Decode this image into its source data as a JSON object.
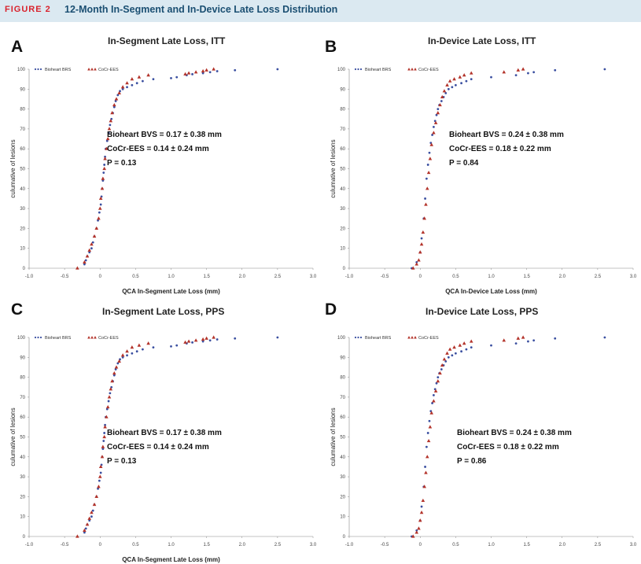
{
  "figure": {
    "label": "FIGURE 2",
    "title": "12-Month In-Segment and In-Device Late Loss Distribution"
  },
  "colors": {
    "bioheart": "#3a4fa0",
    "cocr": "#b3332a"
  },
  "legend": {
    "series1": "Bioheart BRS",
    "series2": "CoCr-EES"
  },
  "chart_data": [
    {
      "panel": "A",
      "type": "scatter",
      "title": "In-Segment Late Loss, ITT",
      "xlabel": "QCA In-Segment Late Loss (mm)",
      "ylabel": "culumative of lesions",
      "xlim": [
        -1.0,
        3.0
      ],
      "ylim": [
        0,
        100
      ],
      "xticks": [
        "-1.0",
        "-0.5",
        "0",
        "0.5",
        "1.0",
        "1.5",
        "2.0",
        "2.5",
        "3.0"
      ],
      "yticks": [
        "0",
        "10",
        "20",
        "30",
        "40",
        "50",
        "60",
        "70",
        "80",
        "90",
        "100"
      ],
      "stats": [
        "Bioheart BVS = 0.17 ± 0.38 mm",
        "CoCr-EES = 0.14 ± 0.24 mm",
        "P = 0.13"
      ],
      "series": [
        {
          "name": "Bioheart BRS",
          "marker": "dot",
          "x": [
            -0.22,
            -0.2,
            -0.18,
            -0.15,
            -0.12,
            -0.1,
            -0.08,
            -0.05,
            -0.03,
            -0.01,
            0.01,
            0.02,
            0.03,
            0.04,
            0.05,
            0.06,
            0.07,
            0.08,
            0.1,
            0.12,
            0.14,
            0.16,
            0.18,
            0.2,
            0.22,
            0.25,
            0.28,
            0.32,
            0.38,
            0.45,
            0.52,
            0.6,
            0.75,
            1.0,
            1.08,
            1.22,
            1.3,
            1.45,
            1.55,
            1.65,
            1.9,
            2.5
          ],
          "y": [
            2,
            4,
            6,
            8,
            10,
            13,
            16,
            20,
            24,
            28,
            32,
            36,
            40,
            44,
            48,
            52,
            56,
            60,
            64,
            68,
            72,
            75,
            78,
            81,
            84,
            87,
            89,
            90,
            91,
            92,
            93,
            94,
            95,
            95.5,
            96,
            97,
            97.5,
            98,
            98.5,
            99,
            99.5,
            100
          ]
        },
        {
          "name": "CoCr-EES",
          "marker": "triangle",
          "x": [
            -0.32,
            -0.22,
            -0.18,
            -0.15,
            -0.12,
            -0.08,
            -0.05,
            -0.02,
            0.0,
            0.01,
            0.03,
            0.04,
            0.06,
            0.07,
            0.09,
            0.11,
            0.13,
            0.15,
            0.17,
            0.2,
            0.23,
            0.27,
            0.32,
            0.38,
            0.45,
            0.55,
            0.68,
            1.2,
            1.25,
            1.35,
            1.45,
            1.5,
            1.6
          ],
          "y": [
            0,
            3,
            6,
            9,
            12,
            16,
            20,
            25,
            30,
            35,
            40,
            45,
            50,
            55,
            60,
            65,
            70,
            74,
            78,
            82,
            85,
            88,
            91,
            93,
            95,
            96,
            97,
            97.5,
            98,
            98.5,
            99,
            99.5,
            100
          ]
        }
      ]
    },
    {
      "panel": "B",
      "type": "scatter",
      "title": "In-Device Late Loss, ITT",
      "xlabel": "QCA In-Device Late Loss (mm)",
      "ylabel": "culumative of lesions",
      "xlim": [
        -1.0,
        3.0
      ],
      "ylim": [
        0,
        100
      ],
      "xticks": [
        "-1.0",
        "-0.5",
        "0",
        "0.5",
        "1.0",
        "1.5",
        "2.0",
        "2.5",
        "3.0"
      ],
      "yticks": [
        "0",
        "10",
        "20",
        "30",
        "40",
        "50",
        "60",
        "70",
        "80",
        "90",
        "100"
      ],
      "stats": [
        "Bioheart BVS = 0.24 ± 0.38 mm",
        "CoCr-EES = 0.18 ± 0.22 mm",
        "P = 0.84"
      ],
      "series": [
        {
          "name": "Bioheart BRS",
          "marker": "dot",
          "x": [
            -0.12,
            -0.05,
            0.0,
            0.02,
            0.05,
            0.07,
            0.09,
            0.11,
            0.13,
            0.15,
            0.17,
            0.19,
            0.21,
            0.23,
            0.25,
            0.27,
            0.3,
            0.33,
            0.36,
            0.4,
            0.45,
            0.5,
            0.58,
            0.65,
            0.72,
            1.0,
            1.35,
            1.52,
            1.6,
            1.9,
            2.6
          ],
          "y": [
            0,
            3,
            8,
            15,
            25,
            35,
            45,
            52,
            58,
            63,
            67,
            71,
            74,
            77,
            80,
            82,
            84,
            86,
            88,
            90,
            91,
            92,
            93,
            94,
            95,
            96,
            97,
            98,
            98.5,
            99.5,
            100
          ]
        },
        {
          "name": "CoCr-EES",
          "marker": "triangle",
          "x": [
            -0.1,
            -0.05,
            -0.02,
            0.0,
            0.02,
            0.04,
            0.06,
            0.08,
            0.1,
            0.12,
            0.14,
            0.16,
            0.19,
            0.22,
            0.25,
            0.28,
            0.31,
            0.34,
            0.38,
            0.42,
            0.48,
            0.56,
            0.62,
            0.72,
            1.18,
            1.38,
            1.45
          ],
          "y": [
            0,
            2,
            4,
            8,
            12,
            18,
            25,
            32,
            40,
            48,
            55,
            62,
            68,
            73,
            78,
            82,
            86,
            89,
            92,
            94,
            95,
            96,
            97,
            98,
            98.5,
            99.5,
            100
          ]
        }
      ]
    },
    {
      "panel": "C",
      "type": "scatter",
      "title": "In-Segment Late Loss, PPS",
      "xlabel": "QCA In-Segment Late Loss (mm)",
      "ylabel": "culumative of lesions",
      "xlim": [
        -1.0,
        3.0
      ],
      "ylim": [
        0,
        100
      ],
      "xticks": [
        "-1.0",
        "-0.5",
        "0",
        "0.5",
        "1.0",
        "1.5",
        "2.0",
        "2.5",
        "3.0"
      ],
      "yticks": [
        "0",
        "10",
        "20",
        "30",
        "40",
        "50",
        "60",
        "70",
        "80",
        "90",
        "100"
      ],
      "stats": [
        "Bioheart BVS = 0.17 ± 0.38 mm",
        "CoCr-EES = 0.14 ± 0.24 mm",
        "P = 0.13"
      ],
      "series": [
        {
          "name": "Bioheart BRS",
          "marker": "dot",
          "x": [
            -0.22,
            -0.2,
            -0.18,
            -0.15,
            -0.12,
            -0.1,
            -0.08,
            -0.05,
            -0.03,
            -0.01,
            0.01,
            0.02,
            0.03,
            0.04,
            0.05,
            0.06,
            0.07,
            0.08,
            0.1,
            0.12,
            0.14,
            0.16,
            0.18,
            0.2,
            0.22,
            0.25,
            0.28,
            0.32,
            0.38,
            0.45,
            0.52,
            0.6,
            0.75,
            1.0,
            1.08,
            1.22,
            1.3,
            1.45,
            1.55,
            1.65,
            1.9,
            2.5
          ],
          "y": [
            2,
            4,
            6,
            8,
            10,
            13,
            16,
            20,
            24,
            28,
            32,
            36,
            40,
            44,
            48,
            52,
            56,
            60,
            64,
            68,
            72,
            75,
            78,
            81,
            84,
            87,
            89,
            90,
            91,
            92,
            93,
            94,
            95,
            95.5,
            96,
            97,
            97.5,
            98,
            98.5,
            99,
            99.5,
            100
          ]
        },
        {
          "name": "CoCr-EES",
          "marker": "triangle",
          "x": [
            -0.32,
            -0.22,
            -0.18,
            -0.15,
            -0.12,
            -0.08,
            -0.05,
            -0.02,
            0.0,
            0.01,
            0.03,
            0.04,
            0.06,
            0.07,
            0.09,
            0.11,
            0.13,
            0.15,
            0.17,
            0.2,
            0.23,
            0.27,
            0.32,
            0.38,
            0.45,
            0.55,
            0.68,
            1.2,
            1.25,
            1.35,
            1.45,
            1.5,
            1.6
          ],
          "y": [
            0,
            3,
            6,
            9,
            12,
            16,
            20,
            25,
            30,
            35,
            40,
            45,
            50,
            55,
            60,
            65,
            70,
            74,
            78,
            82,
            85,
            88,
            91,
            93,
            95,
            96,
            97,
            97.5,
            98,
            98.5,
            99,
            99.5,
            100
          ]
        }
      ]
    },
    {
      "panel": "D",
      "type": "scatter",
      "title": "In-Device Late Loss, PPS",
      "xlabel": "",
      "ylabel": "culumative of lesions",
      "xlim": [
        -1.0,
        3.0
      ],
      "ylim": [
        0,
        100
      ],
      "xticks": [
        "-1.0",
        "-0.5",
        "0",
        "0.5",
        "1.0",
        "1.5",
        "2.0",
        "2.5",
        "3.0"
      ],
      "yticks": [
        "0",
        "10",
        "20",
        "30",
        "40",
        "50",
        "60",
        "70",
        "80",
        "90",
        "100"
      ],
      "stats": [
        "Bioheart BVS = 0.24 ± 0.38 mm",
        "CoCr-EES = 0.18 ± 0.22 mm",
        "P = 0.86"
      ],
      "series": [
        {
          "name": "Bioheart BRS",
          "marker": "dot",
          "x": [
            -0.12,
            -0.05,
            0.0,
            0.02,
            0.05,
            0.07,
            0.09,
            0.11,
            0.13,
            0.15,
            0.17,
            0.19,
            0.21,
            0.23,
            0.25,
            0.27,
            0.3,
            0.33,
            0.36,
            0.4,
            0.45,
            0.5,
            0.58,
            0.65,
            0.72,
            1.0,
            1.35,
            1.52,
            1.6,
            1.9,
            2.6
          ],
          "y": [
            0,
            3,
            8,
            15,
            25,
            35,
            45,
            52,
            58,
            63,
            67,
            71,
            74,
            77,
            80,
            82,
            84,
            86,
            88,
            90,
            91,
            92,
            93,
            94,
            95,
            96,
            97,
            98,
            98.5,
            99.5,
            100
          ]
        },
        {
          "name": "CoCr-EES",
          "marker": "triangle",
          "x": [
            -0.1,
            -0.05,
            -0.02,
            0.0,
            0.02,
            0.04,
            0.06,
            0.08,
            0.1,
            0.12,
            0.14,
            0.16,
            0.19,
            0.22,
            0.25,
            0.28,
            0.31,
            0.34,
            0.38,
            0.42,
            0.48,
            0.56,
            0.62,
            0.72,
            1.18,
            1.38,
            1.45
          ],
          "y": [
            0,
            2,
            4,
            8,
            12,
            18,
            25,
            32,
            40,
            48,
            55,
            62,
            68,
            73,
            78,
            82,
            86,
            89,
            92,
            94,
            95,
            96,
            97,
            98,
            98.5,
            99.5,
            100
          ]
        }
      ]
    }
  ]
}
